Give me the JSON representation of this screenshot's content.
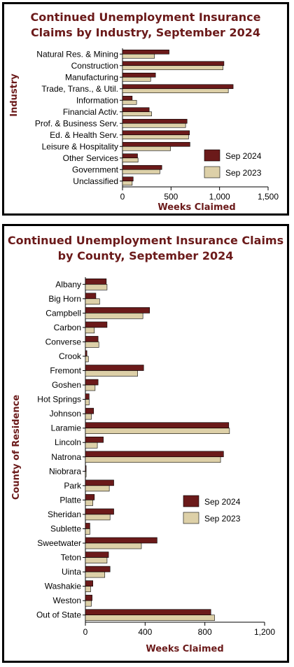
{
  "colors": {
    "sep2024": "#6b1a1a",
    "sep2023": "#ddd0a8",
    "title": "#6b1a1a"
  },
  "chart_data": [
    {
      "type": "bar",
      "orientation": "horizontal",
      "title_lines": [
        "Continued Unemployment Insurance",
        "Claims by Industry, September 2024"
      ],
      "xlabel": "Weeks Claimed",
      "ylabel": "Industry",
      "xlim": [
        0,
        1500
      ],
      "xticks": [
        0,
        500,
        1000,
        1500
      ],
      "xtick_labels": [
        "0",
        "500",
        "1,000",
        "1,500"
      ],
      "categories": [
        "Natural Res. & Mining",
        "Construction",
        "Manufacturing",
        "Trade, Trans., & Util.",
        "Information",
        "Financial Activ.",
        "Prof. & Business Serv.",
        "Ed. & Health Serv.",
        "Leisure & Hospitality",
        "Other Services",
        "Government",
        "Unclassified"
      ],
      "series": [
        {
          "name": "Sep 2024",
          "values": [
            480,
            1045,
            340,
            1140,
            100,
            275,
            665,
            690,
            695,
            155,
            405,
            110
          ]
        },
        {
          "name": "Sep 2023",
          "values": [
            330,
            1035,
            290,
            1090,
            145,
            300,
            650,
            680,
            495,
            160,
            385,
            100
          ]
        }
      ],
      "legend": "bottom-right"
    },
    {
      "type": "bar",
      "orientation": "horizontal",
      "title_lines": [
        "Continued Unemployment Insurance Claims",
        "by County, September 2024"
      ],
      "xlabel": "Weeks Claimed",
      "ylabel": "County of Residence",
      "xlim": [
        0,
        1200
      ],
      "xticks": [
        0,
        400,
        800,
        1200
      ],
      "xtick_labels": [
        "0",
        "400",
        "800",
        "1,200"
      ],
      "categories": [
        "Albany",
        "Big Horn",
        "Campbell",
        "Carbon",
        "Converse",
        "Crook",
        "Fremont",
        "Goshen",
        "Hot Springs",
        "Johnson",
        "Laramie",
        "Lincoln",
        "Natrona",
        "Niobrara",
        "Park",
        "Platte",
        "Sheridan",
        "Sublette",
        "Sweetwater",
        "Teton",
        "Uinta",
        "Washakie",
        "Weston",
        "Out of State"
      ],
      "series": [
        {
          "name": "Sep 2024",
          "values": [
            140,
            70,
            430,
            145,
            85,
            10,
            390,
            85,
            25,
            55,
            960,
            120,
            925,
            5,
            190,
            60,
            190,
            30,
            480,
            155,
            165,
            50,
            45,
            840
          ]
        },
        {
          "name": "Sep 2023",
          "values": [
            145,
            95,
            385,
            60,
            90,
            20,
            350,
            65,
            25,
            40,
            965,
            80,
            905,
            5,
            160,
            50,
            165,
            30,
            375,
            145,
            130,
            35,
            40,
            865
          ]
        }
      ],
      "legend": "right"
    }
  ]
}
